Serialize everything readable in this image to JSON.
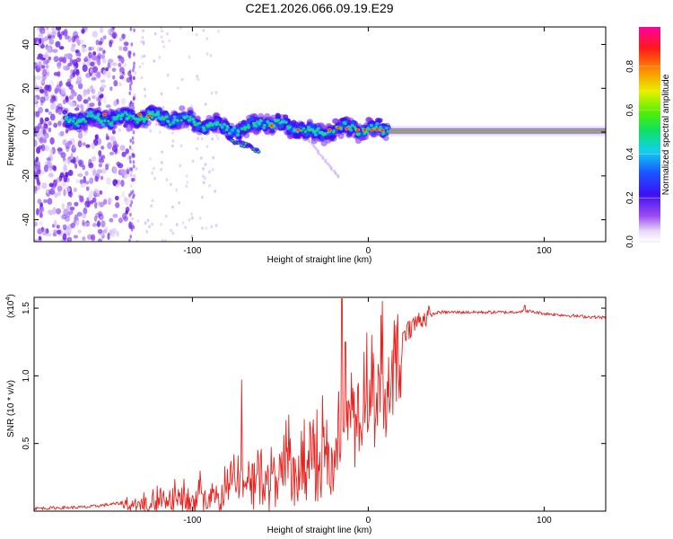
{
  "title": "C2E1.2026.066.09.19.E29",
  "colors": {
    "snr_line": "#e8231f",
    "axis": "#000000"
  },
  "chart_data": [
    {
      "type": "heatmap",
      "name": "spectrogram",
      "xlabel": "Height of straight line (km)",
      "ylabel": "Frequency (Hz)",
      "xlim": [
        -190,
        135
      ],
      "ylim": [
        -50,
        48
      ],
      "xticks": [
        "-100",
        "0",
        "100"
      ],
      "xtick_values": [
        -100,
        0,
        100
      ],
      "yticks": [
        "-40",
        "-20",
        "0",
        "20",
        "40"
      ],
      "ytick_values": [
        -40,
        -20,
        0,
        20,
        40
      ],
      "colorbar": {
        "label": "Normalized spectral amplitude",
        "ticks": [
          "0.0",
          "0.2",
          "0.4",
          "0.6",
          "0.8"
        ],
        "tick_values": [
          0,
          0.2,
          0.4,
          0.6,
          0.8
        ],
        "range": [
          0,
          0.98
        ]
      },
      "ridge": {
        "description_points_x": [
          -170,
          -150,
          -135,
          -120,
          -100,
          -85,
          -70,
          -60,
          -50,
          -40,
          -30,
          -20,
          -10,
          0,
          10,
          20,
          60,
          100,
          135
        ],
        "frequency_y": [
          6,
          6,
          7,
          7,
          5,
          2,
          1,
          5,
          3,
          2,
          -1,
          1,
          2,
          1,
          1,
          0.5,
          0.5,
          0.5,
          0.5
        ],
        "tone_x_range": [
          12,
          135
        ],
        "tone_frequency": 0.5
      },
      "noise_region_x": [
        -190,
        -135
      ]
    },
    {
      "type": "line",
      "name": "snr",
      "xlabel": "Height of straight line (km)",
      "ylabel": "SNR (10 * v/v)",
      "scale_note": "(x10",
      "scale_exponent": "4",
      "xlim": [
        -190,
        135
      ],
      "ylim": [
        0,
        1.58
      ],
      "xticks": [
        "-100",
        "0",
        "100"
      ],
      "xtick_values": [
        -100,
        0,
        100
      ],
      "yticks": [
        "0.5",
        "1.0",
        "1.5"
      ],
      "ytick_values": [
        0.5,
        1.0,
        1.5
      ],
      "envelope": {
        "x": [
          -190,
          -160,
          -140,
          -120,
          -100,
          -85,
          -75,
          -65,
          -50,
          -35,
          -20,
          -10,
          0,
          5,
          10,
          20,
          30,
          40,
          60,
          80,
          90,
          100,
          120,
          135
        ],
        "y": [
          0.02,
          0.03,
          0.06,
          0.1,
          0.14,
          0.2,
          0.28,
          0.3,
          0.36,
          0.45,
          0.55,
          0.75,
          0.85,
          0.95,
          1.1,
          1.32,
          1.42,
          1.47,
          1.47,
          1.47,
          1.48,
          1.46,
          1.44,
          1.43
        ]
      },
      "spikes": [
        {
          "x": -72,
          "y": 0.97
        },
        {
          "x": -15,
          "y": 1.57
        },
        {
          "x": -13,
          "y": 1.25
        },
        {
          "x": 8,
          "y": 1.55
        },
        {
          "x": 2,
          "y": 1.3
        },
        {
          "x": 10,
          "y": 0.55
        },
        {
          "x": 89,
          "y": 1.52
        }
      ]
    }
  ]
}
